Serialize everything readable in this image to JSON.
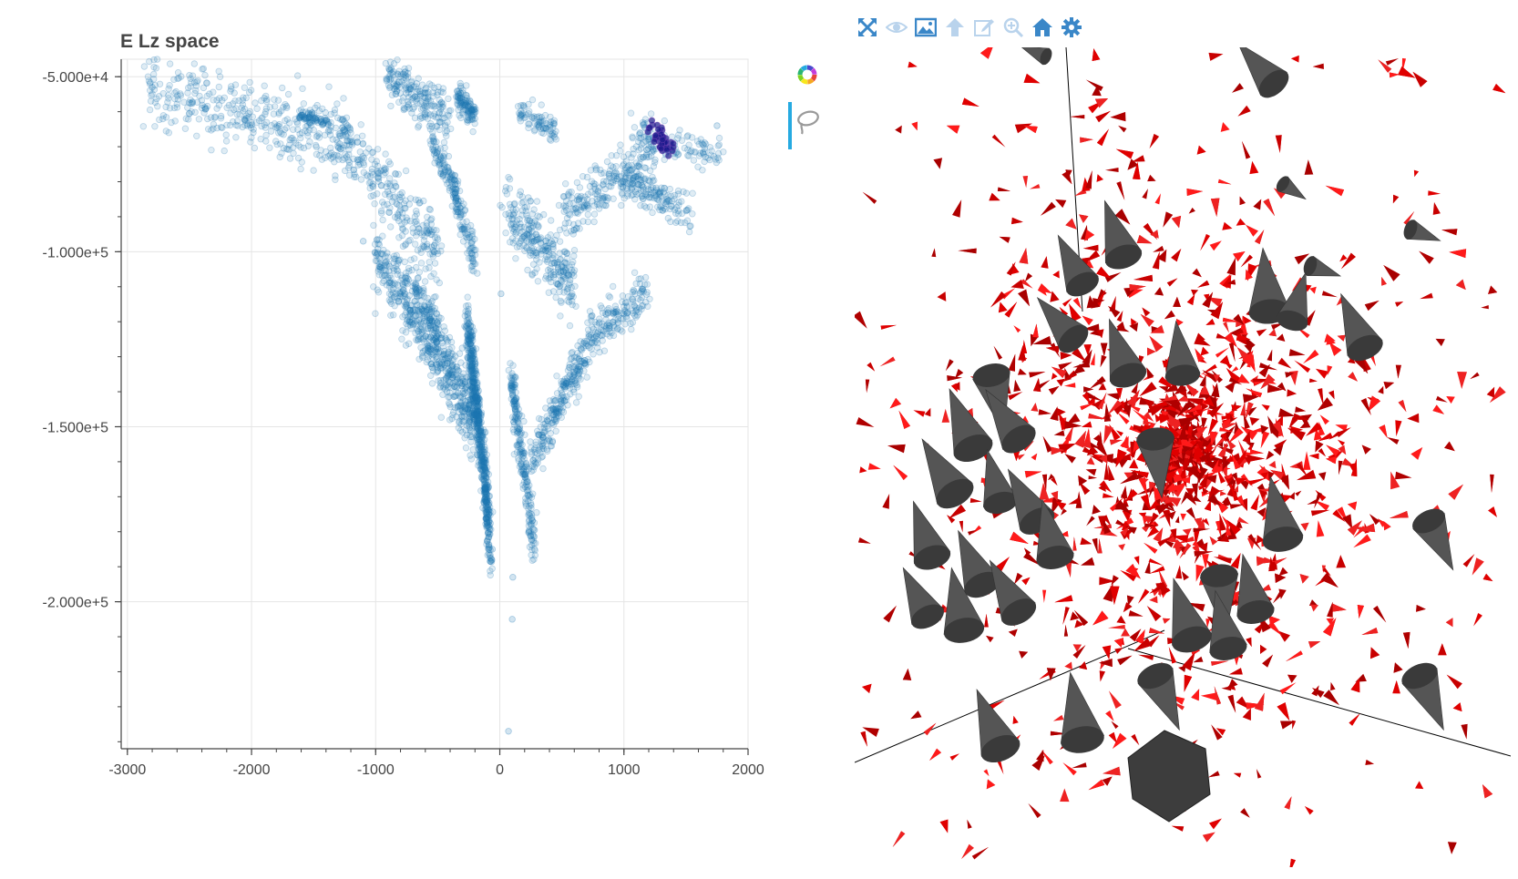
{
  "chart_data": {
    "type": "scatter",
    "title": "E Lz space",
    "xlabel": "",
    "ylabel": "",
    "xlim": [
      -3050,
      2000
    ],
    "ylim": [
      -242000,
      -45000
    ],
    "x_ticks": [
      -3000,
      -2000,
      -1000,
      0,
      1000,
      2000
    ],
    "x_tick_labels": [
      "-3000",
      "-2000",
      "-1000",
      "0",
      "1000",
      "2000"
    ],
    "y_ticks": [
      -50000,
      -100000,
      -150000,
      -200000
    ],
    "y_tick_labels": [
      "-5.000e+4",
      "-1.000e+5",
      "-1.500e+5",
      "-2.000e+5"
    ],
    "grid": true,
    "colors": {
      "points": "#1f77b4",
      "selected": "#1a1a8c",
      "grid": "#e5e5e5"
    },
    "clusters": [
      {
        "x": [
          -2850,
          -1200
        ],
        "y": [
          -52000,
          -70000
        ],
        "n": 380,
        "spread": 5000
      },
      {
        "x": [
          -1300,
          -500
        ],
        "y": [
          -66000,
          -100000
        ],
        "n": 260,
        "spread": 5000
      },
      {
        "x": [
          -1000,
          -200
        ],
        "y": [
          -100000,
          -150000
        ],
        "n": 450,
        "spread": 4500
      },
      {
        "x": [
          -700,
          -150
        ],
        "y": [
          -110000,
          -150000
        ],
        "n": 260,
        "spread": 3500
      },
      {
        "x": [
          -260,
          -90
        ],
        "y": [
          -120000,
          -175000
        ],
        "n": 550,
        "spread": 3000
      },
      {
        "x": [
          -130,
          -70
        ],
        "y": [
          -165000,
          -190000
        ],
        "n": 80,
        "spread": 1800
      },
      {
        "x": [
          -900,
          -400
        ],
        "y": [
          -50000,
          -62000
        ],
        "n": 200,
        "spread": 3500
      },
      {
        "x": [
          -350,
          -200
        ],
        "y": [
          -55000,
          -61000
        ],
        "n": 110,
        "spread": 2000
      },
      {
        "x": [
          -550,
          -350
        ],
        "y": [
          -68000,
          -82000
        ],
        "n": 90,
        "spread": 2000
      },
      {
        "x": [
          -380,
          -200
        ],
        "y": [
          -82000,
          -102000
        ],
        "n": 110,
        "spread": 2500
      },
      {
        "x": [
          150,
          450
        ],
        "y": [
          -60000,
          -66000
        ],
        "n": 80,
        "spread": 2000
      },
      {
        "x": [
          50,
          600
        ],
        "y": [
          -88000,
          -110000
        ],
        "n": 280,
        "spread": 4500
      },
      {
        "x": [
          500,
          1250
        ],
        "y": [
          -90000,
          -72000
        ],
        "n": 220,
        "spread": 3500
      },
      {
        "x": [
          1000,
          1550
        ],
        "y": [
          -80000,
          -89000
        ],
        "n": 140,
        "spread": 2500
      },
      {
        "x": [
          1050,
          1800
        ],
        "y": [
          -66000,
          -73000
        ],
        "n": 120,
        "spread": 2500
      },
      {
        "x": [
          700,
          1200
        ],
        "y": [
          -125000,
          -112000
        ],
        "n": 170,
        "spread": 3500
      },
      {
        "x": [
          250,
          700
        ],
        "y": [
          -160000,
          -128000
        ],
        "n": 240,
        "spread": 3500
      },
      {
        "x": [
          90,
          280
        ],
        "y": [
          -135000,
          -185000
        ],
        "n": 230,
        "spread": 3000
      },
      {
        "x": [
          -1620,
          -1380
        ],
        "y": [
          -61000,
          -63000
        ],
        "n": 60,
        "spread": 700
      }
    ],
    "outliers": [
      {
        "x": 70,
        "y": -237000
      },
      {
        "x": 100,
        "y": -205000
      },
      {
        "x": 105,
        "y": -193000
      },
      {
        "x": -60,
        "y": -185000
      },
      {
        "x": -100,
        "y": -178000
      },
      {
        "x": 10,
        "y": -112000
      },
      {
        "x": -1100,
        "y": -97000
      },
      {
        "x": 1750,
        "y": -64000
      },
      {
        "x": -2800,
        "y": -53000
      }
    ],
    "selected": {
      "x": [
        1220,
        1380
      ],
      "y": [
        -64000,
        -72000
      ],
      "n": 45,
      "spread": 1200
    },
    "legend": "none"
  },
  "left_toolbar": {
    "tools": [
      {
        "name": "bokeh-logo-icon",
        "active": false
      },
      {
        "name": "lasso-select-icon",
        "active": true
      }
    ],
    "active_color": "#26aae1"
  },
  "viewer": {
    "toolbar": [
      "fullscreen-icon",
      "eye-icon",
      "image-icon",
      "arrow-up-icon",
      "edit-icon",
      "zoom-in-icon",
      "home-icon",
      "gear-icon"
    ],
    "toolbar_color": "#3a87c8",
    "arrow_color": "#e00000",
    "cone_color": "#555555",
    "background": "#ffffff"
  }
}
